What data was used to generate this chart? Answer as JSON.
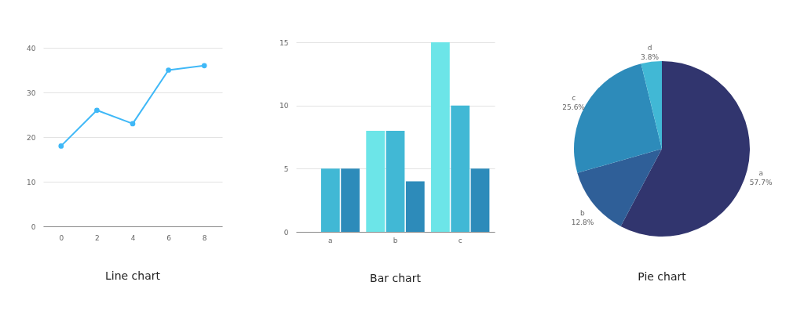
{
  "chart_data": [
    {
      "type": "line",
      "title": "Line chart",
      "x": [
        0,
        2,
        4,
        6,
        8
      ],
      "xlim": [
        -1,
        9
      ],
      "xticks": [
        0,
        2,
        4,
        6,
        8
      ],
      "ylim": [
        0,
        40
      ],
      "yticks": [
        0,
        10,
        20,
        30,
        40
      ],
      "grid": "y",
      "marker": "circle",
      "line_style": "solid",
      "series": [
        {
          "color": "#3fb8f7",
          "values": [
            18,
            26,
            23,
            35,
            36
          ]
        }
      ]
    },
    {
      "type": "bar",
      "title": "Bar chart",
      "categories": [
        "a",
        "b",
        "c"
      ],
      "ylim": [
        0,
        15
      ],
      "yticks": [
        0,
        5,
        10,
        15
      ],
      "grid": "y",
      "series": [
        {
          "color": "#6ce5e8",
          "values": [
            null,
            8,
            15
          ]
        },
        {
          "color": "#41b8d5",
          "values": [
            5,
            8,
            10
          ]
        },
        {
          "color": "#2d8bba",
          "values": [
            5,
            4,
            5
          ]
        }
      ]
    },
    {
      "type": "pie",
      "title": "Pie chart",
      "categories": [
        "a",
        "b",
        "c",
        "d"
      ],
      "values": [
        57.7,
        12.8,
        25.6,
        3.8
      ],
      "value_labels": [
        "57.7%",
        "12.8%",
        "25.6%",
        "3.8%"
      ],
      "colors": [
        "#31356e",
        "#2f5f98",
        "#2d8bba",
        "#41b8d5"
      ]
    }
  ]
}
